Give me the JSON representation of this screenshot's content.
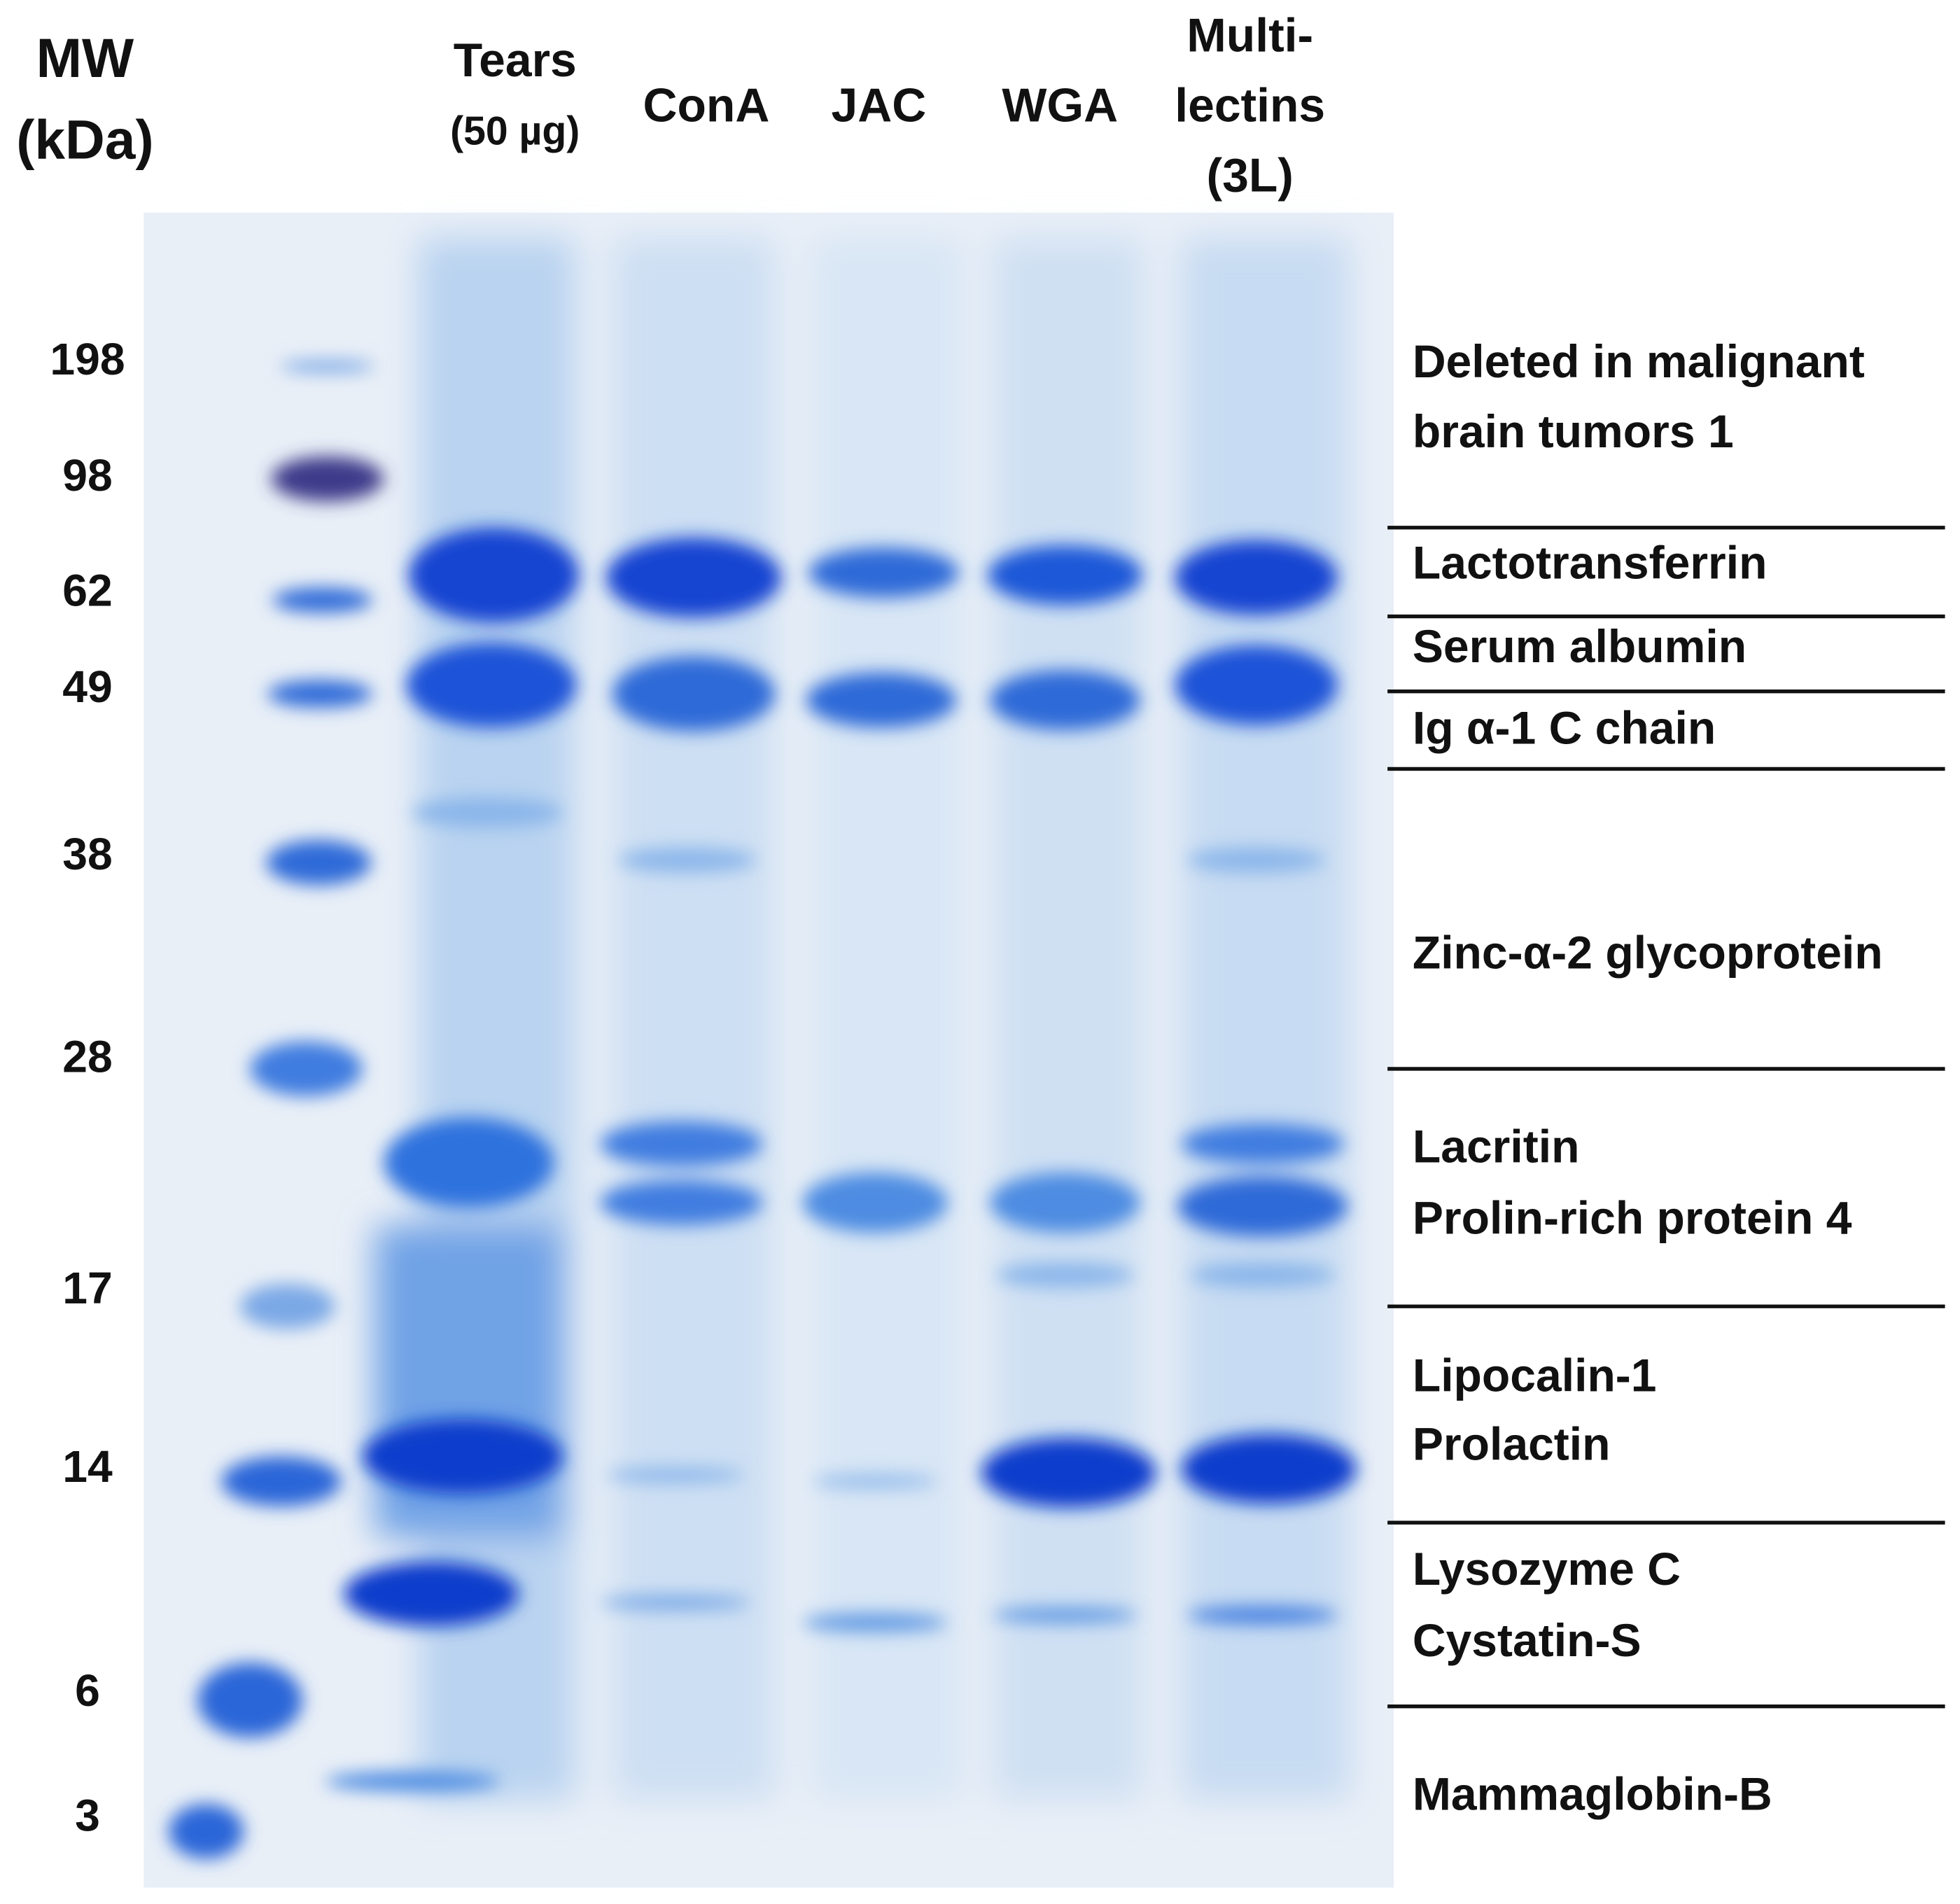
{
  "mw_header": [
    "MW",
    "(kDa)"
  ],
  "markers": [
    198,
    98,
    62,
    49,
    38,
    28,
    17,
    14,
    6,
    3
  ],
  "lanes": [
    [
      "Tears",
      "(50 µg)"
    ],
    [
      "ConA"
    ],
    [
      "JAC"
    ],
    [
      "WGA"
    ],
    [
      "Multi-",
      "lectins",
      "(3L)"
    ]
  ],
  "proteins": [
    [
      "Deleted in malignant",
      "brain tumors 1"
    ],
    [
      "Lactotransferrin"
    ],
    [
      "Serum albumin"
    ],
    [
      "Ig α-1 C chain"
    ],
    [
      "Zinc-α-2 glycoprotein"
    ],
    [
      "Lacritin",
      "Prolin-rich protein 4"
    ],
    [
      "Lipocalin-1",
      "Prolactin"
    ],
    [
      "Lysozyme C",
      "Cystatin-S"
    ],
    [
      "Mammaglobin-B"
    ]
  ]
}
